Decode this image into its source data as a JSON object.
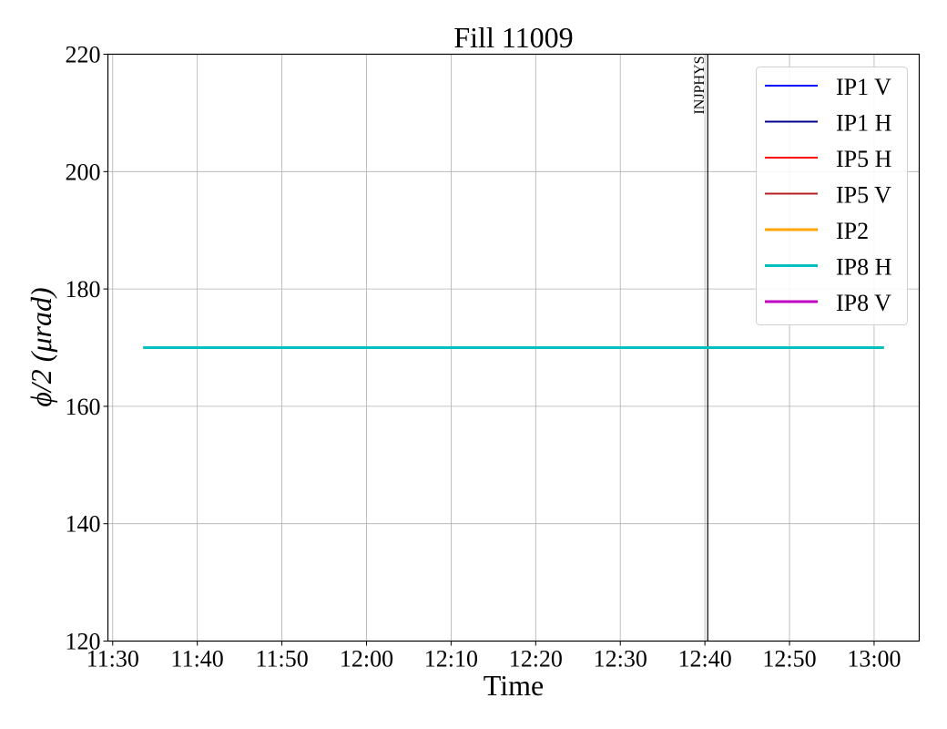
{
  "chart_data": {
    "type": "line",
    "title": "Fill 11009",
    "xlabel": "Time",
    "ylabel": "ϕ/2 (μrad)",
    "ylim": [
      120,
      220
    ],
    "xlim": [
      "11:29:26",
      "13:05:20"
    ],
    "yticks": [
      "120",
      "140",
      "160",
      "180",
      "200",
      "220"
    ],
    "xticks": [
      "11:30",
      "11:40",
      "11:50",
      "12:00",
      "12:10",
      "12:20",
      "12:30",
      "12:40",
      "12:50",
      "13:00"
    ],
    "grid": true,
    "legend_position": "top-right",
    "annotations": [
      {
        "label": "INJPHYS",
        "x": "12:40:20",
        "color": "#000000"
      }
    ],
    "series": [
      {
        "name": "IP1 V",
        "color": "#0000ff",
        "x": [],
        "y": []
      },
      {
        "name": "IP1 H",
        "color": "#00008b",
        "x": [],
        "y": []
      },
      {
        "name": "IP5 H",
        "color": "#ff0000",
        "x": [],
        "y": []
      },
      {
        "name": "IP5 V",
        "color": "#b22222",
        "x": [],
        "y": []
      },
      {
        "name": "IP2",
        "color": "#ffa500",
        "x": [
          "11:33:36",
          "13:01:10"
        ],
        "y": [
          170,
          170
        ]
      },
      {
        "name": "IP8 H",
        "color": "#00bfbf",
        "x": [
          "11:33:36",
          "13:01:10"
        ],
        "y": [
          170,
          170
        ]
      },
      {
        "name": "IP8 V",
        "color": "#bf00bf",
        "x": [],
        "y": []
      }
    ]
  }
}
